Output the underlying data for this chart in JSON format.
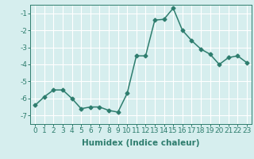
{
  "x": [
    0,
    1,
    2,
    3,
    4,
    5,
    6,
    7,
    8,
    9,
    10,
    11,
    12,
    13,
    14,
    15,
    16,
    17,
    18,
    19,
    20,
    21,
    22,
    23
  ],
  "y": [
    -6.4,
    -5.9,
    -5.5,
    -5.5,
    -6.0,
    -6.6,
    -6.5,
    -6.5,
    -6.7,
    -6.8,
    -5.7,
    -3.5,
    -3.5,
    -1.4,
    -1.35,
    -0.7,
    -2.0,
    -2.6,
    -3.1,
    -3.4,
    -4.0,
    -3.6,
    -3.5,
    -3.9
  ],
  "line_color": "#2e7d6e",
  "marker": "D",
  "marker_size": 2.5,
  "bg_color": "#d6eeee",
  "grid_color": "#ffffff",
  "xlabel": "Humidex (Indice chaleur)",
  "ylabel": "",
  "xlim": [
    -0.5,
    23.5
  ],
  "ylim": [
    -7.5,
    -0.5
  ],
  "yticks": [
    -7,
    -6,
    -5,
    -4,
    -3,
    -2,
    -1
  ],
  "xticks": [
    0,
    1,
    2,
    3,
    4,
    5,
    6,
    7,
    8,
    9,
    10,
    11,
    12,
    13,
    14,
    15,
    16,
    17,
    18,
    19,
    20,
    21,
    22,
    23
  ],
  "tick_label_fontsize": 6.5,
  "xlabel_fontsize": 7.5,
  "line_width": 1.1
}
